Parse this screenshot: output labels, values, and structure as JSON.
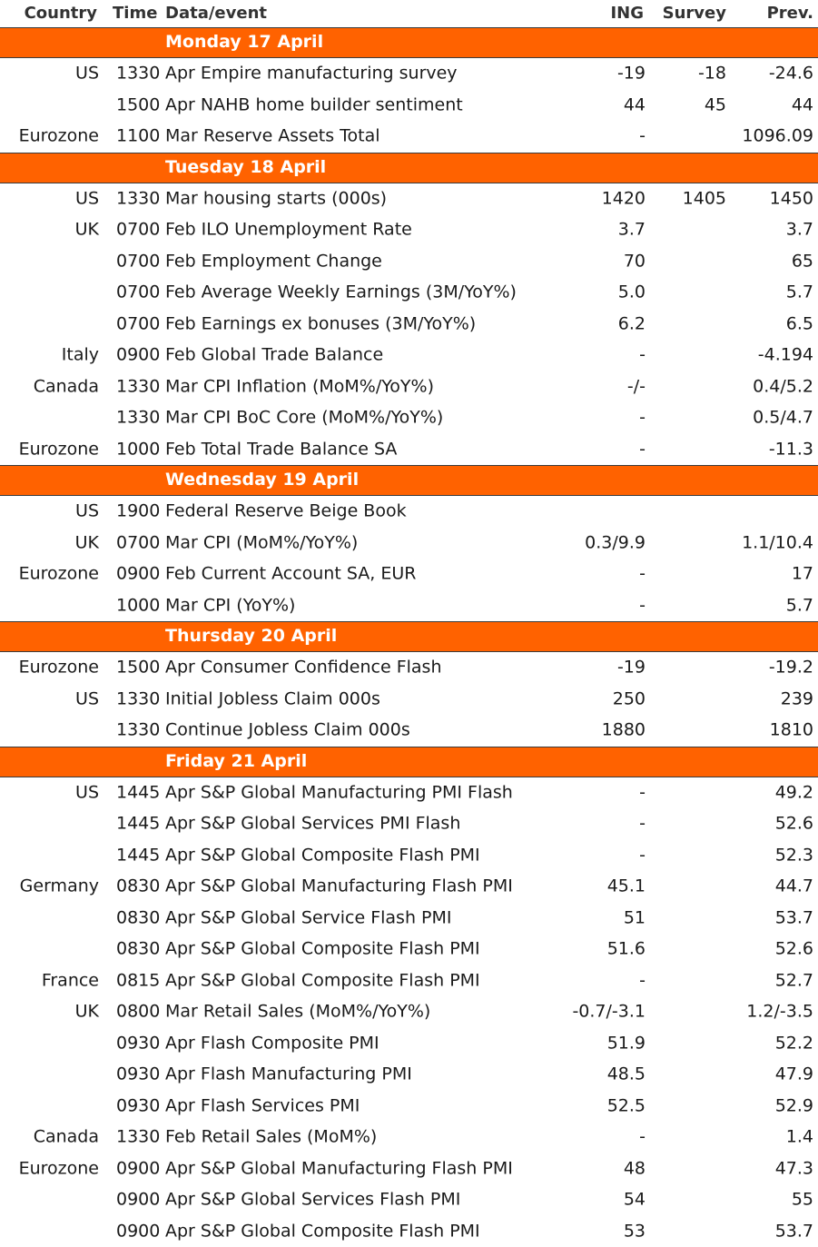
{
  "header": {
    "country": "Country",
    "time": "Time",
    "event": "Data/event",
    "ing": "ING",
    "survey": "Survey",
    "prev": "Prev."
  },
  "sections": [
    {
      "day": "Monday 17 April",
      "rows": [
        {
          "country": "US",
          "time": "1330",
          "event": "Apr Empire manufacturing survey",
          "ing": "-19",
          "survey": "-18",
          "prev": "-24.6"
        },
        {
          "country": "",
          "time": "1500",
          "event": "Apr NAHB home builder sentiment",
          "ing": "44",
          "survey": "45",
          "prev": "44"
        },
        {
          "country": "Eurozone",
          "time": "1100",
          "event": "Mar Reserve Assets Total",
          "ing": "-",
          "survey": "",
          "prev": "1096.09"
        }
      ]
    },
    {
      "day": "Tuesday 18 April",
      "rows": [
        {
          "country": "US",
          "time": "1330",
          "event": "Mar housing starts (000s)",
          "ing": "1420",
          "survey": "1405",
          "prev": "1450"
        },
        {
          "country": "UK",
          "time": "0700",
          "event": "Feb ILO Unemployment Rate",
          "ing": "3.7",
          "survey": "",
          "prev": "3.7"
        },
        {
          "country": "",
          "time": "0700",
          "event": "Feb Employment Change",
          "ing": "70",
          "survey": "",
          "prev": "65"
        },
        {
          "country": "",
          "time": "0700",
          "event": "Feb Average Weekly Earnings (3M/YoY%)",
          "ing": "5.0",
          "survey": "",
          "prev": "5.7"
        },
        {
          "country": "",
          "time": "0700",
          "event": "Feb Earnings ex bonuses (3M/YoY%)",
          "ing": "6.2",
          "survey": "",
          "prev": "6.5"
        },
        {
          "country": "Italy",
          "time": "0900",
          "event": "Feb Global Trade Balance",
          "ing": "-",
          "survey": "",
          "prev": "-4.194"
        },
        {
          "country": "Canada",
          "time": "1330",
          "event": "Mar CPI Inflation (MoM%/YoY%)",
          "ing": "-/-",
          "survey": "",
          "prev": "0.4/5.2"
        },
        {
          "country": "",
          "time": "1330",
          "event": "Mar CPI BoC Core (MoM%/YoY%)",
          "ing": "-",
          "survey": "",
          "prev": "0.5/4.7"
        },
        {
          "country": "Eurozone",
          "time": "1000",
          "event": "Feb Total Trade Balance SA",
          "ing": "-",
          "survey": "",
          "prev": "-11.3"
        }
      ]
    },
    {
      "day": "Wednesday 19 April",
      "rows": [
        {
          "country": "US",
          "time": "1900",
          "event": "Federal Reserve Beige Book",
          "ing": "",
          "survey": "",
          "prev": ""
        },
        {
          "country": "UK",
          "time": "0700",
          "event": "Mar CPI (MoM%/YoY%)",
          "ing": "0.3/9.9",
          "survey": "",
          "prev": "1.1/10.4"
        },
        {
          "country": "Eurozone",
          "time": "0900",
          "event": "Feb Current Account SA, EUR",
          "ing": "-",
          "survey": "",
          "prev": "17"
        },
        {
          "country": "",
          "time": "1000",
          "event": "Mar CPI (YoY%)",
          "ing": "-",
          "survey": "",
          "prev": "5.7"
        }
      ]
    },
    {
      "day": "Thursday 20 April",
      "rows": [
        {
          "country": "Eurozone",
          "time": "1500",
          "event": "Apr Consumer Confidence Flash",
          "ing": "-19",
          "survey": "",
          "prev": "-19.2"
        },
        {
          "country": "US",
          "time": "1330",
          "event": "Initial Jobless Claim 000s",
          "ing": "250",
          "survey": "",
          "prev": "239"
        },
        {
          "country": "",
          "time": "1330",
          "event": "Continue Jobless Claim 000s",
          "ing": "1880",
          "survey": "",
          "prev": "1810"
        }
      ]
    },
    {
      "day": "Friday 21 April",
      "rows": [
        {
          "country": "US",
          "time": "1445",
          "event": "Apr S&P Global Manufacturing PMI Flash",
          "ing": "-",
          "survey": "",
          "prev": "49.2"
        },
        {
          "country": "",
          "time": "1445",
          "event": "Apr S&P Global Services PMI Flash",
          "ing": "-",
          "survey": "",
          "prev": "52.6"
        },
        {
          "country": "",
          "time": "1445",
          "event": "Apr S&P Global Composite Flash PMI",
          "ing": "-",
          "survey": "",
          "prev": "52.3"
        },
        {
          "country": "Germany",
          "time": "0830",
          "event": "Apr S&P Global Manufacturing Flash PMI",
          "ing": "45.1",
          "survey": "",
          "prev": "44.7"
        },
        {
          "country": "",
          "time": "0830",
          "event": "Apr S&P Global Service Flash PMI",
          "ing": "51",
          "survey": "",
          "prev": "53.7"
        },
        {
          "country": "",
          "time": "0830",
          "event": "Apr S&P Global Composite Flash PMI",
          "ing": "51.6",
          "survey": "",
          "prev": "52.6"
        },
        {
          "country": "France",
          "time": "0815",
          "event": "Apr S&P Global Composite Flash PMI",
          "ing": "-",
          "survey": "",
          "prev": "52.7"
        },
        {
          "country": "UK",
          "time": "0800",
          "event": "Mar Retail Sales (MoM%/YoY%)",
          "ing": "-0.7/-3.1",
          "survey": "",
          "prev": "1.2/-3.5"
        },
        {
          "country": "",
          "time": "0930",
          "event": "Apr Flash Composite PMI",
          "ing": "51.9",
          "survey": "",
          "prev": "52.2"
        },
        {
          "country": "",
          "time": "0930",
          "event": "Apr Flash Manufacturing PMI",
          "ing": "48.5",
          "survey": "",
          "prev": "47.9"
        },
        {
          "country": "",
          "time": "0930",
          "event": "Apr Flash Services PMI",
          "ing": "52.5",
          "survey": "",
          "prev": "52.9"
        },
        {
          "country": "Canada",
          "time": "1330",
          "event": "Feb Retail Sales (MoM%)",
          "ing": "-",
          "survey": "",
          "prev": "1.4"
        },
        {
          "country": "Eurozone",
          "time": "0900",
          "event": "Apr S&P Global Manufacturing Flash PMI",
          "ing": "48",
          "survey": "",
          "prev": "47.3"
        },
        {
          "country": "",
          "time": "0900",
          "event": "Apr S&P Global Services Flash PMI",
          "ing": "54",
          "survey": "",
          "prev": "55"
        },
        {
          "country": "",
          "time": "0900",
          "event": "Apr S&P Global Composite Flash PMI",
          "ing": "53",
          "survey": "",
          "prev": "53.7"
        }
      ]
    }
  ]
}
